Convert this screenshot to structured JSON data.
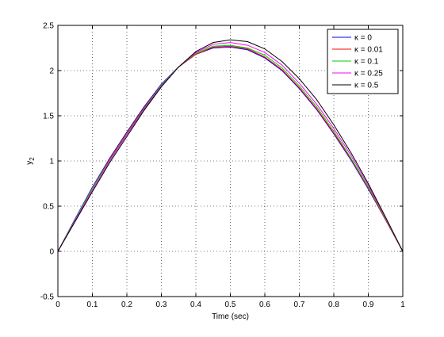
{
  "chart_data": {
    "type": "line",
    "title": "",
    "xlabel": "Time (sec)",
    "ylabel": "y",
    "ylabel_subscript": "2",
    "xlim": [
      0,
      1
    ],
    "ylim": [
      -0.5,
      2.5
    ],
    "xticks": [
      "0",
      "0.1",
      "0.2",
      "0.3",
      "0.4",
      "0.5",
      "0.6",
      "0.7",
      "0.8",
      "0.9",
      "1"
    ],
    "yticks": [
      "-0.5",
      "0",
      "0.5",
      "1",
      "1.5",
      "2",
      "2.5"
    ],
    "grid": true,
    "legend_position": "top-right",
    "x": [
      0,
      0.05,
      0.1,
      0.15,
      0.2,
      0.25,
      0.3,
      0.35,
      0.4,
      0.45,
      0.5,
      0.55,
      0.6,
      0.65,
      0.7,
      0.75,
      0.8,
      0.85,
      0.9,
      0.95,
      1.0
    ],
    "series": [
      {
        "name": "κ = 0",
        "color": "#0000ff",
        "values": [
          0,
          0.36,
          0.71,
          1.03,
          1.32,
          1.6,
          1.85,
          2.04,
          2.18,
          2.25,
          2.26,
          2.23,
          2.14,
          2.0,
          1.8,
          1.57,
          1.3,
          1.01,
          0.69,
          0.35,
          0
        ]
      },
      {
        "name": "κ = 0.01",
        "color": "#ff0000",
        "values": [
          0,
          0.35,
          0.7,
          1.02,
          1.31,
          1.59,
          1.84,
          2.04,
          2.18,
          2.26,
          2.27,
          2.24,
          2.15,
          2.01,
          1.81,
          1.58,
          1.31,
          1.02,
          0.7,
          0.35,
          0
        ]
      },
      {
        "name": "κ = 0.1",
        "color": "#00cc00",
        "values": [
          0,
          0.35,
          0.7,
          1.01,
          1.3,
          1.58,
          1.84,
          2.04,
          2.19,
          2.27,
          2.28,
          2.25,
          2.17,
          2.03,
          1.83,
          1.6,
          1.33,
          1.03,
          0.71,
          0.36,
          0
        ]
      },
      {
        "name": "κ = 0.25",
        "color": "#ff00ff",
        "values": [
          0,
          0.34,
          0.68,
          1.0,
          1.29,
          1.57,
          1.83,
          2.04,
          2.2,
          2.29,
          2.31,
          2.28,
          2.2,
          2.06,
          1.86,
          1.63,
          1.36,
          1.06,
          0.73,
          0.37,
          0
        ]
      },
      {
        "name": "κ = 0.5",
        "color": "#000000",
        "values": [
          0,
          0.33,
          0.66,
          0.98,
          1.27,
          1.56,
          1.82,
          2.04,
          2.21,
          2.31,
          2.34,
          2.32,
          2.24,
          2.1,
          1.91,
          1.68,
          1.4,
          1.09,
          0.75,
          0.38,
          0
        ]
      }
    ]
  }
}
